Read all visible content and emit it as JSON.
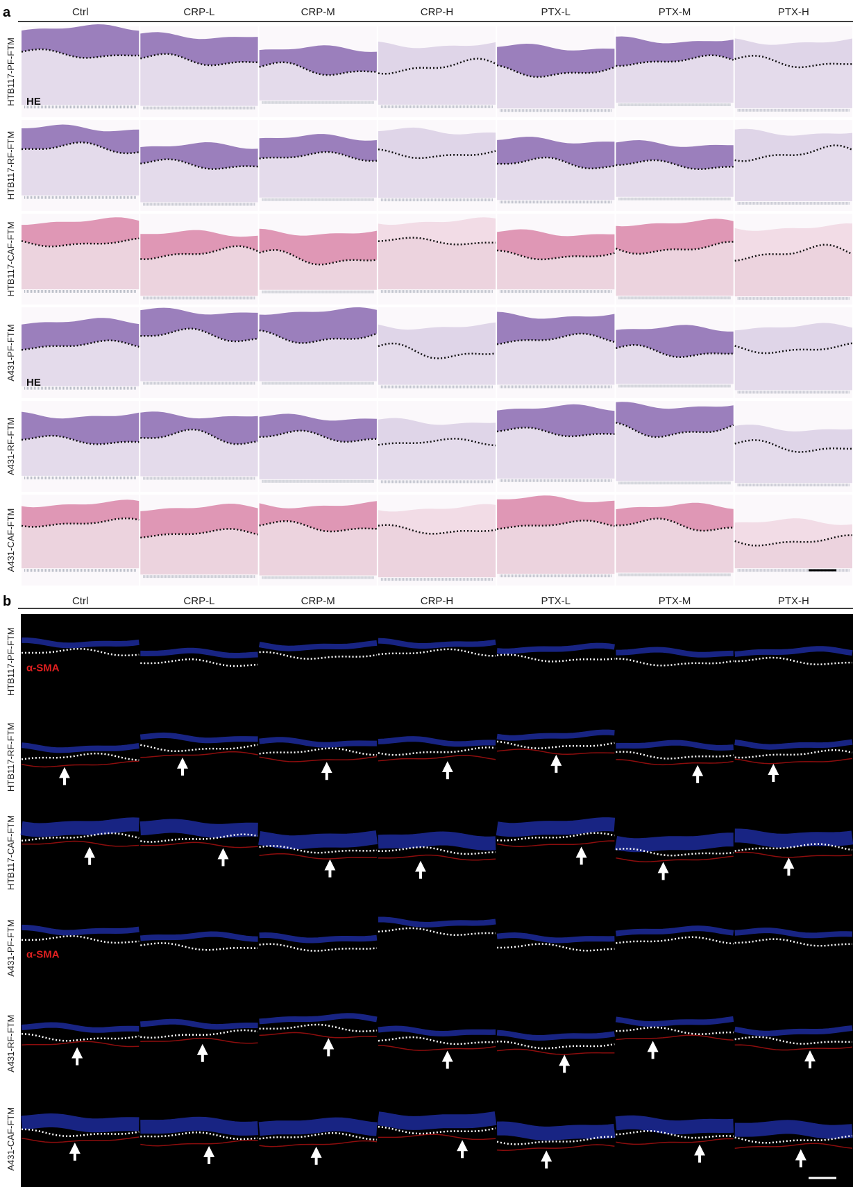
{
  "panel_a": {
    "label": "a",
    "columns": [
      "Ctrl",
      "CRP-L",
      "CRP-M",
      "CRP-H",
      "PTX-L",
      "PTX-M",
      "PTX-H"
    ],
    "rows": [
      "HTB117-PF-FTM",
      "HTB117-RF-FTM",
      "HTB117-CAF-FTM",
      "A431-PF-FTM",
      "A431-RF-FTM",
      "A431-CAF-FTM"
    ],
    "stain_labels": [
      "HE",
      "HE"
    ]
  },
  "panel_b": {
    "label": "b",
    "columns": [
      "Ctrl",
      "CRP-L",
      "CRP-M",
      "CRP-H",
      "PTX-L",
      "PTX-M",
      "PTX-H"
    ],
    "rows": [
      "HTB117-PF-FTM",
      "HTB117-RF-FTM",
      "HTB117-CAF-FTM",
      "A431-PF-FTM",
      "A431-RF-FTM",
      "A431-CAF-FTM"
    ],
    "stain_labels": [
      "α-SMA",
      "α-SMA"
    ]
  }
}
